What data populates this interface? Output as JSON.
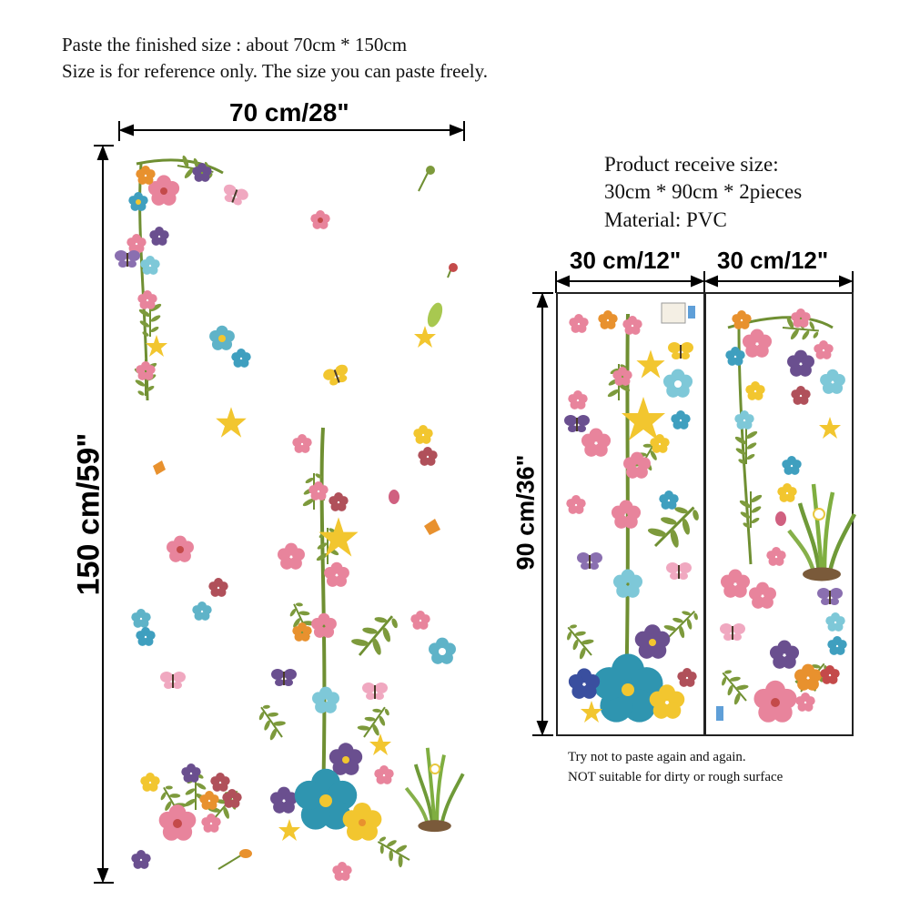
{
  "header": {
    "line1": "Paste the finished size : about 70cm * 150cm",
    "line2": "Size is for reference only. The size you can paste freely."
  },
  "dimensions": {
    "total_width": "70 cm/28\"",
    "total_height": "150 cm/59\"",
    "piece_width_left": "30 cm/12\"",
    "piece_width_right": "30 cm/12\"",
    "piece_height": "90 cm/36\""
  },
  "product": {
    "line1": "Product receive size:",
    "line2": "30cm * 90cm * 2pieces",
    "line3": "Material: PVC"
  },
  "notes": {
    "line1": "Try not to paste again and again.",
    "line2": "NOT suitable for dirty or rough surface"
  },
  "colors": {
    "pink": "#e8849c",
    "teal": "#3f9fbf",
    "yellow": "#f2c62f",
    "purple": "#6a4f8f",
    "green": "#7d9a3c",
    "orange": "#e8912e",
    "red": "#c44a4a"
  }
}
